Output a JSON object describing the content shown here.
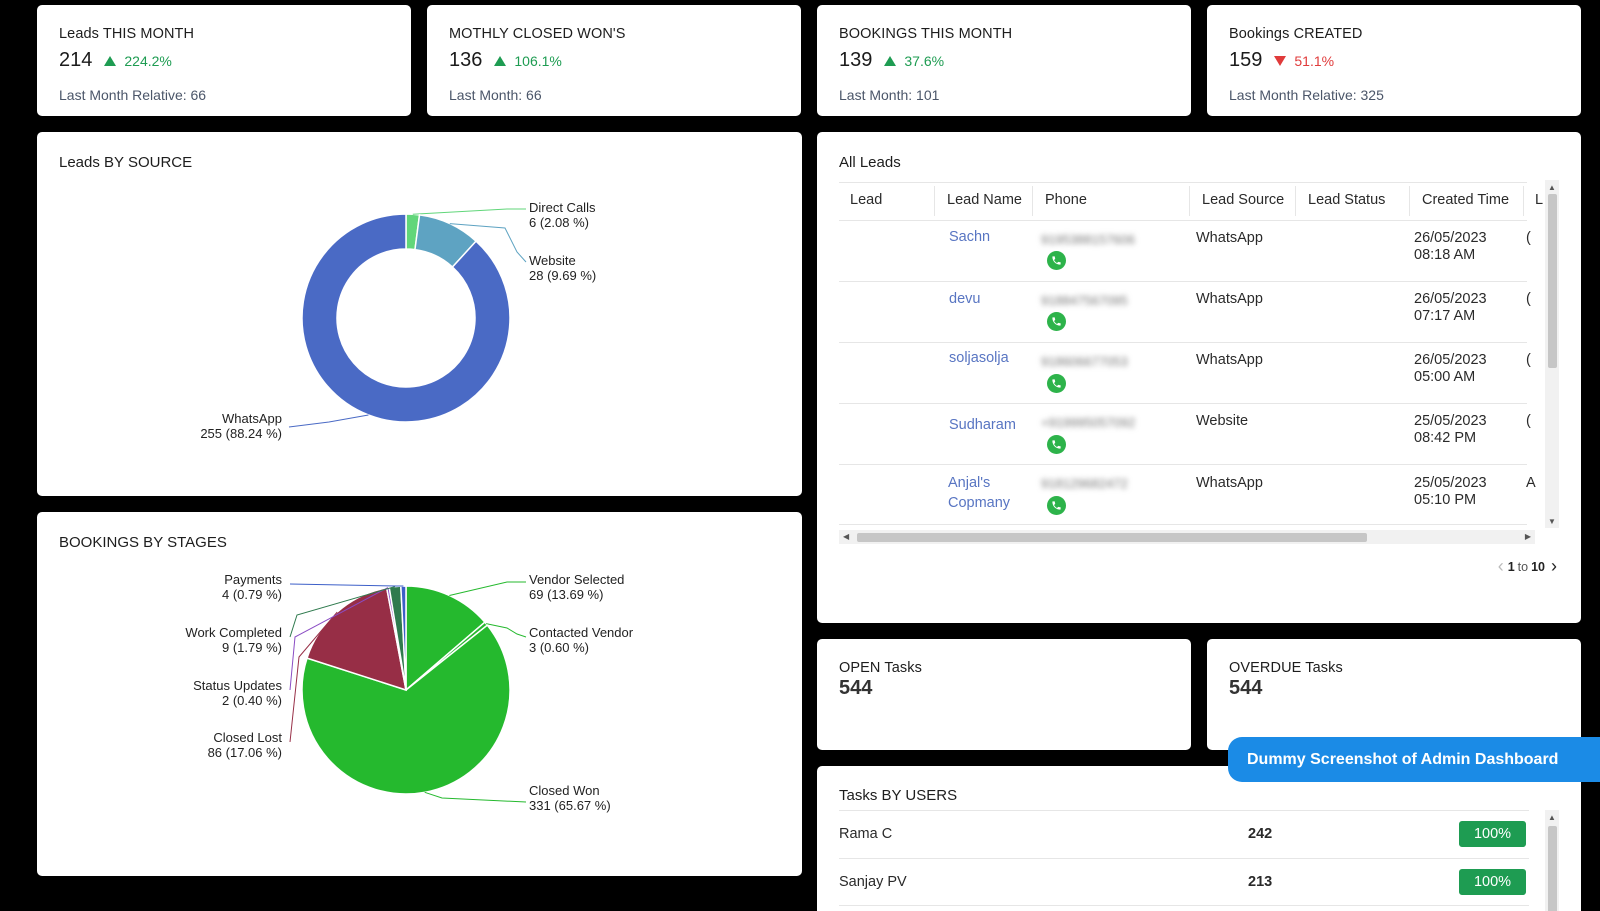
{
  "kpis": [
    {
      "title": "Leads THIS MONTH",
      "value": "214",
      "change": "224.2%",
      "direction": "up",
      "sub": "Last Month Relative: 66"
    },
    {
      "title": "MOTHLY CLOSED WON'S",
      "value": "136",
      "change": "106.1%",
      "direction": "up",
      "sub": "Last Month: 66"
    },
    {
      "title": "BOOKINGS THIS MONTH",
      "value": "139",
      "change": "37.6%",
      "direction": "up",
      "sub": "Last Month: 101"
    },
    {
      "title": "Bookings CREATED",
      "value": "159",
      "change": "51.1%",
      "direction": "down",
      "sub": "Last Month Relative: 325"
    }
  ],
  "leads_by_source": {
    "title": "Leads BY SOURCE"
  },
  "bookings_by_stages": {
    "title": "BOOKINGS BY STAGES"
  },
  "chart_data": [
    {
      "type": "pie",
      "variant": "donut",
      "title": "Leads BY SOURCE",
      "slices": [
        {
          "name": "Direct Calls",
          "value": 6,
          "label": "6 (2.08 %)",
          "color": "#61d67a"
        },
        {
          "name": "Website",
          "value": 28,
          "label": "28 (9.69 %)",
          "color": "#5ea3c2"
        },
        {
          "name": "WhatsApp",
          "value": 255,
          "label": "255 (88.24 %)",
          "color": "#4a6ac5"
        }
      ]
    },
    {
      "type": "pie",
      "title": "BOOKINGS BY STAGES",
      "slices": [
        {
          "name": "Vendor Selected",
          "value": 69,
          "label": "69 (13.69 %)",
          "color": "#25b92e"
        },
        {
          "name": "Contacted Vendor",
          "value": 3,
          "label": "3 (0.60 %)",
          "color": "#25b92e"
        },
        {
          "name": "Closed Won",
          "value": 331,
          "label": "331 (65.67 %)",
          "color": "#25b92e"
        },
        {
          "name": "Closed Lost",
          "value": 86,
          "label": "86 (17.06 %)",
          "color": "#972e46"
        },
        {
          "name": "Status Updates",
          "value": 2,
          "label": "2 (0.40 %)",
          "color": "#8a4cc4"
        },
        {
          "name": "Work Completed",
          "value": 9,
          "label": "9 (1.79 %)",
          "color": "#2f7a4e"
        },
        {
          "name": "Payments",
          "value": 4,
          "label": "4 (0.79 %)",
          "color": "#3c5fc8"
        }
      ]
    }
  ],
  "all_leads": {
    "title": "All Leads",
    "columns": [
      "Lead",
      "Lead Name",
      "Phone",
      "Lead Source",
      "Lead Status",
      "Created Time",
      "L"
    ],
    "rows": [
      {
        "name": "Sachn",
        "phone": "9195388157606",
        "source": "WhatsApp",
        "date": "26/05/2023",
        "time": "08:18 AM",
        "extra": "("
      },
      {
        "name": "devu",
        "phone": "918847567095",
        "source": "WhatsApp",
        "date": "26/05/2023",
        "time": "07:17 AM",
        "extra": "("
      },
      {
        "name": "soljasolja",
        "phone": "918606677053",
        "source": "WhatsApp",
        "date": "26/05/2023",
        "time": "05:00 AM",
        "extra": "("
      },
      {
        "name": "Sudharam",
        "phone": "+919995057092",
        "source": "Website",
        "date": "25/05/2023",
        "time": "08:42 PM",
        "extra": "("
      },
      {
        "name": "Anjal's",
        "name2": "Copmany",
        "phone": "918129682472",
        "source": "WhatsApp",
        "date": "25/05/2023",
        "time": "05:10 PM",
        "extra": "A"
      }
    ],
    "pagination": {
      "from": "1",
      "to_word": "to",
      "to": "10"
    }
  },
  "open_tasks": {
    "title": "OPEN Tasks",
    "value": "544"
  },
  "overdue_tasks": {
    "title": "OVERDUE Tasks",
    "value": "544"
  },
  "banner": "Dummy Screenshot of Admin Dashboard",
  "tasks_by_users": {
    "title": "Tasks BY USERS",
    "rows": [
      {
        "user": "Rama C",
        "count": "242",
        "pct": "100%"
      },
      {
        "user": "Sanjay PV",
        "count": "213",
        "pct": "100%"
      }
    ]
  },
  "colors": {
    "positive": "#1e9c52",
    "negative": "#e03b3b",
    "link": "#5875c2",
    "banner": "#1b8be6"
  }
}
